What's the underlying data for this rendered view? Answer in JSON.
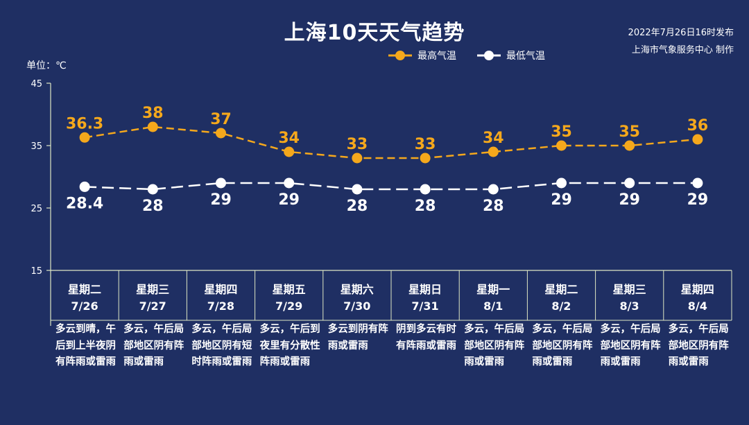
{
  "title": "上海10天天气趋势",
  "publish_time": "2022年7月26日16时发布",
  "publisher": "上海市气象服务中心 制作",
  "unit_label": "单位：℃",
  "colors": {
    "background": "#1f2f63",
    "high": "#f5a81c",
    "low": "#ffffff",
    "grid": "#dfe8c4"
  },
  "chart_data": {
    "type": "line",
    "yticks": [
      15,
      25,
      35,
      45
    ],
    "ylim": [
      15,
      45
    ],
    "categories": [
      "7/26",
      "7/27",
      "7/28",
      "7/29",
      "7/30",
      "7/31",
      "8/1",
      "8/2",
      "8/3",
      "8/4"
    ],
    "series": [
      {
        "name": "最高气温",
        "values": [
          36.3,
          38,
          37,
          34,
          33,
          33,
          34,
          35,
          35,
          36
        ],
        "labels": [
          "36.3",
          "38",
          "37",
          "34",
          "33",
          "33",
          "34",
          "35",
          "35",
          "36"
        ]
      },
      {
        "name": "最低气温",
        "values": [
          28.4,
          28,
          29,
          29,
          28,
          28,
          28,
          29,
          29,
          29
        ],
        "labels": [
          "28.4",
          "28",
          "29",
          "29",
          "28",
          "28",
          "28",
          "29",
          "29",
          "29"
        ]
      }
    ]
  },
  "days": [
    {
      "weekday": "星期二",
      "date": "7/26",
      "desc": "多云到晴，午后到上半夜阴有阵雨或雷雨"
    },
    {
      "weekday": "星期三",
      "date": "7/27",
      "desc": "多云，午后局部地区阴有阵雨或雷雨"
    },
    {
      "weekday": "星期四",
      "date": "7/28",
      "desc": "多云，午后局部地区阴有短时阵雨或雷雨"
    },
    {
      "weekday": "星期五",
      "date": "7/29",
      "desc": "多云，午后到夜里有分散性阵雨或雷雨"
    },
    {
      "weekday": "星期六",
      "date": "7/30",
      "desc": "多云到阴有阵雨或雷雨"
    },
    {
      "weekday": "星期日",
      "date": "7/31",
      "desc": "阴到多云有时有阵雨或雷雨"
    },
    {
      "weekday": "星期一",
      "date": "8/1",
      "desc": "多云，午后局部地区阴有阵雨或雷雨"
    },
    {
      "weekday": "星期二",
      "date": "8/2",
      "desc": "多云，午后局部地区阴有阵雨或雷雨"
    },
    {
      "weekday": "星期三",
      "date": "8/3",
      "desc": "多云，午后局部地区阴有阵雨或雷雨"
    },
    {
      "weekday": "星期四",
      "date": "8/4",
      "desc": "多云，午后局部地区阴有阵雨或雷雨"
    }
  ]
}
